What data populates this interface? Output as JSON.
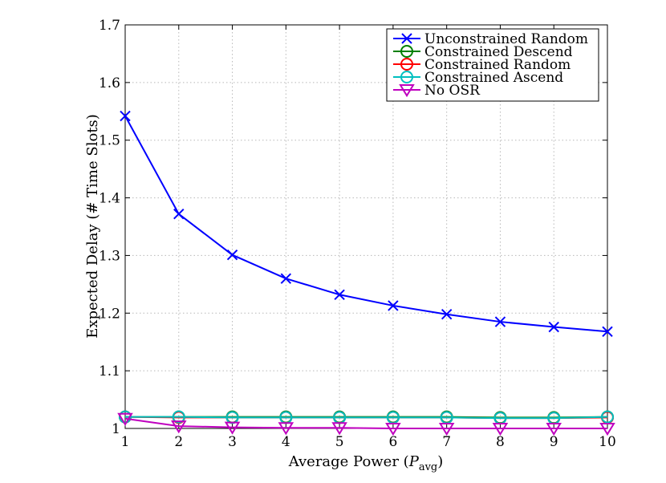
{
  "chart_data": {
    "type": "line",
    "title": "",
    "xlabel": "Average Power (",
    "xlabel_symbol": "P",
    "xlabel_subscript": "avg",
    "xlabel_close": ")",
    "ylabel": "Expected Delay (# Time Slots)",
    "xlim": [
      1,
      10
    ],
    "ylim": [
      1,
      1.7
    ],
    "xticks": [
      1,
      2,
      3,
      4,
      5,
      6,
      7,
      8,
      9,
      10
    ],
    "yticks": [
      1,
      1.1,
      1.2,
      1.3,
      1.4,
      1.5,
      1.6,
      1.7
    ],
    "xtick_labels": [
      "1",
      "2",
      "3",
      "4",
      "5",
      "6",
      "7",
      "8",
      "9",
      "10"
    ],
    "ytick_labels": [
      "1",
      "1.1",
      "1.2",
      "1.3",
      "1.4",
      "1.5",
      "1.6",
      "1.7"
    ],
    "grid": true,
    "legend_position": "top-right",
    "x": [
      1,
      2,
      3,
      4,
      5,
      6,
      7,
      8,
      9,
      10
    ],
    "series": [
      {
        "name": "Unconstrained Random",
        "color": "#0000ff",
        "marker": "x",
        "values": [
          1.542,
          1.372,
          1.301,
          1.26,
          1.232,
          1.213,
          1.198,
          1.185,
          1.176,
          1.168
        ]
      },
      {
        "name": "Constrained Descend",
        "color": "#008000",
        "marker": "circle",
        "values": [
          1.02,
          1.02,
          1.02,
          1.02,
          1.02,
          1.02,
          1.02,
          1.019,
          1.019,
          1.02
        ]
      },
      {
        "name": "Constrained Random",
        "color": "#ff0000",
        "marker": "circle",
        "values": [
          1.02,
          1.019,
          1.019,
          1.019,
          1.019,
          1.019,
          1.019,
          1.018,
          1.018,
          1.019
        ]
      },
      {
        "name": "Constrained Ascend",
        "color": "#00bfbf",
        "marker": "circle",
        "values": [
          1.02,
          1.02,
          1.019,
          1.019,
          1.019,
          1.019,
          1.019,
          1.018,
          1.018,
          1.02
        ]
      },
      {
        "name": "No OSR",
        "color": "#bf00bf",
        "marker": "triangle-down",
        "values": [
          1.017,
          1.004,
          1.002,
          1.001,
          1.001,
          1.0,
          1.0,
          1.0,
          1.0,
          1.0
        ]
      }
    ]
  }
}
